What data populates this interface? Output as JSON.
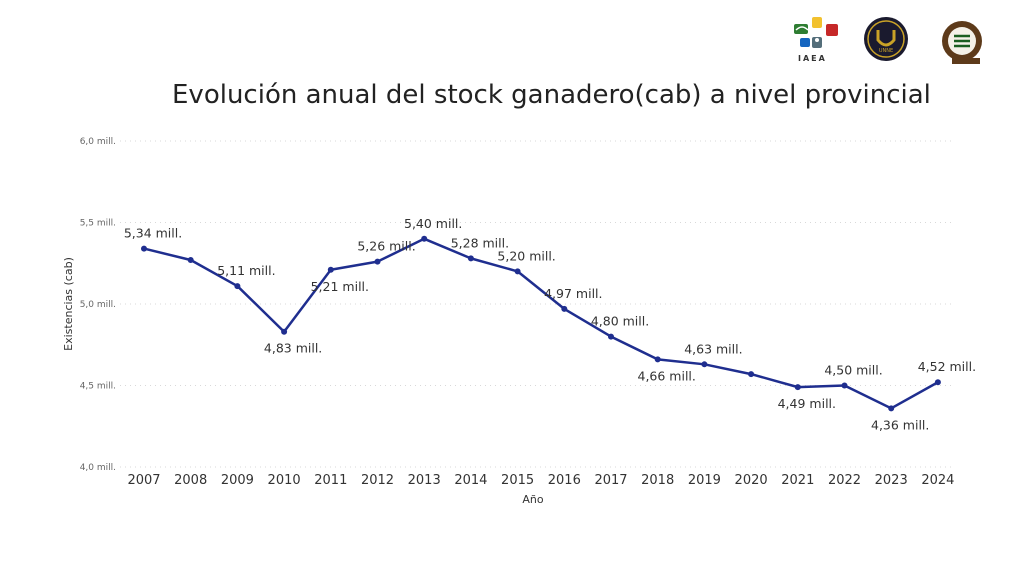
{
  "header": {
    "title": "Evolución anual del stock ganadero(cab) a nivel provincial"
  },
  "logos": {
    "iaea_label": "IAEA",
    "unne_label": "UNNE"
  },
  "colors": {
    "line": "#1f2e8f",
    "grid": "#d9d9d9",
    "text": "#333333"
  },
  "chart_data": {
    "type": "line",
    "x": [
      "2007",
      "2008",
      "2009",
      "2010",
      "2011",
      "2012",
      "2013",
      "2014",
      "2015",
      "2016",
      "2017",
      "2018",
      "2019",
      "2020",
      "2021",
      "2022",
      "2023",
      "2024"
    ],
    "series": [
      {
        "values": [
          5.34,
          5.27,
          5.11,
          4.83,
          5.21,
          5.26,
          5.4,
          5.28,
          5.2,
          4.97,
          4.8,
          4.66,
          4.63,
          4.57,
          4.49,
          4.5,
          4.36,
          4.52
        ],
        "labels": [
          "5,34 mill.",
          "",
          "5,11 mill.",
          "4,83 mill.",
          "5,21 mill.",
          "5,26 mill.",
          "5,40 mill.",
          "5,28 mill.",
          "5,20 mill.",
          "4,97 mill.",
          "4,80 mill.",
          "4,66 mill.",
          "4,63 mill.",
          "",
          "4,49 mill.",
          "4,50 mill.",
          "4,36 mill.",
          "4,52 mill."
        ]
      }
    ],
    "title": "Evolución anual del stock ganadero(cab) a nivel provincial",
    "xlabel": "Año",
    "ylabel": "Existencias (cab)",
    "ylim": [
      4.0,
      6.0
    ],
    "yticks": [
      {
        "value": 6.0,
        "label": "6,0 mill."
      },
      {
        "value": 5.5,
        "label": "5,5 mill."
      },
      {
        "value": 5.0,
        "label": "5,0 mill."
      },
      {
        "value": 4.5,
        "label": "4,5 mill."
      },
      {
        "value": 4.0,
        "label": "4,0 mill."
      }
    ],
    "grid": true,
    "legend": "none"
  }
}
